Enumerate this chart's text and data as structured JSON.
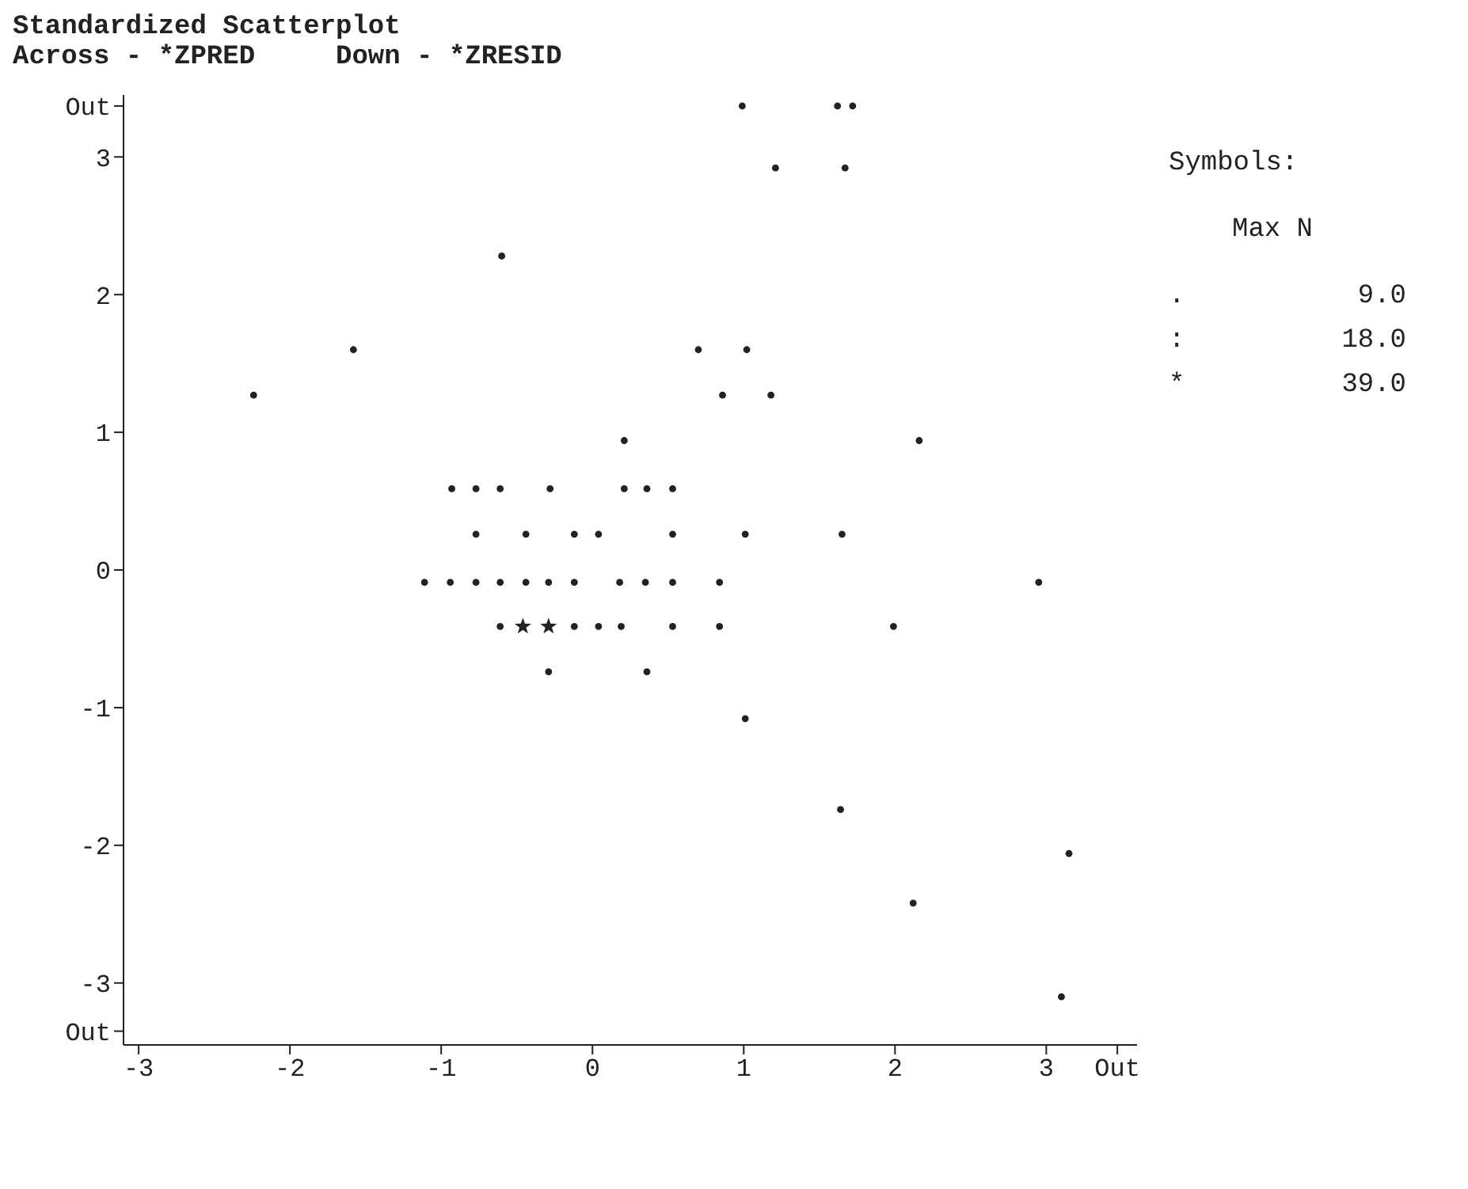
{
  "chart_data": {
    "type": "scatter",
    "title": "Standardized Scatterplot",
    "subtitle": "Across - *ZPRED     Down - *ZRESID",
    "xlim": [
      -3.1,
      3.6
    ],
    "xticks": [
      -3,
      -2,
      -1,
      0,
      1,
      2,
      3,
      {
        "value": 3.47,
        "label": "Out"
      }
    ],
    "ylim": [
      -3.45,
      3.45
    ],
    "yticks": [
      {
        "value": -3.35,
        "label": "Out"
      },
      -3,
      -2,
      -1,
      0,
      1,
      2,
      3,
      {
        "value": 3.37,
        "label": "Out"
      }
    ],
    "grid": false,
    "legend": false,
    "series": [
      {
        "marker": "circle",
        "color": "#222222",
        "x": [
          0.99,
          1.62,
          1.72,
          1.21,
          1.67,
          -0.6,
          -1.58,
          0.7,
          1.02,
          -2.24,
          0.86,
          1.18,
          0.21,
          2.16,
          -0.93,
          -0.77,
          -0.61,
          -0.28,
          0.21,
          0.36,
          0.53,
          -0.77,
          -0.44,
          -0.12,
          0.04,
          0.53,
          1.01,
          1.65,
          -1.11,
          -0.94,
          -0.77,
          -0.61,
          -0.44,
          -0.29,
          -0.12,
          0.18,
          0.35,
          0.53,
          0.84,
          2.95,
          -0.61,
          -0.12,
          0.04,
          0.19,
          0.53,
          0.84,
          1.99,
          -0.29,
          0.36,
          1.01,
          1.64,
          3.15,
          2.12,
          3.1
        ],
        "values": [
          3.37,
          3.37,
          3.37,
          2.92,
          2.92,
          2.28,
          1.6,
          1.6,
          1.6,
          1.27,
          1.27,
          1.27,
          0.94,
          0.94,
          0.59,
          0.59,
          0.59,
          0.59,
          0.59,
          0.59,
          0.59,
          0.26,
          0.26,
          0.26,
          0.26,
          0.26,
          0.26,
          0.26,
          -0.09,
          -0.09,
          -0.09,
          -0.09,
          -0.09,
          -0.09,
          -0.09,
          -0.09,
          -0.09,
          -0.09,
          -0.09,
          -0.09,
          -0.41,
          -0.41,
          -0.41,
          -0.41,
          -0.41,
          -0.41,
          -0.41,
          -0.74,
          -0.74,
          -1.08,
          -1.74,
          -2.06,
          -2.42,
          -3.1
        ]
      },
      {
        "marker": "star",
        "color": "#222222",
        "x": [
          -0.46,
          -0.29
        ],
        "values": [
          -0.41,
          -0.41
        ]
      }
    ],
    "annotations": [
      "Symbols:",
      "Max N",
      ".",
      "9.0",
      ":",
      "18.0",
      "*",
      "39.0"
    ]
  }
}
